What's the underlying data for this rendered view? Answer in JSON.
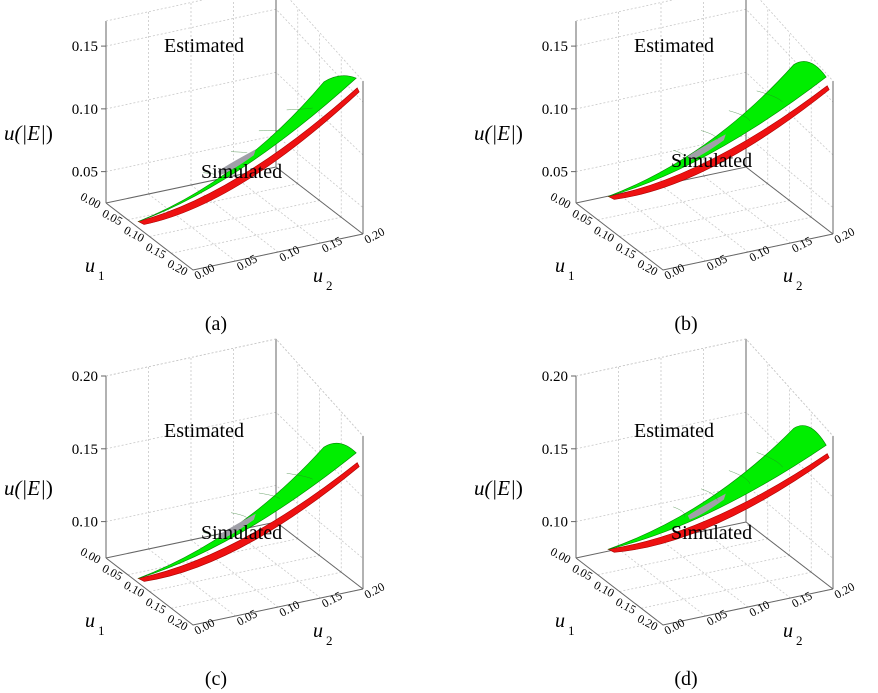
{
  "figure": {
    "colors": {
      "estimated": "#00ee00",
      "simulated": "#ee1111",
      "overlap": "#a0a0a8",
      "grid": "#c8c8c8",
      "box": "#666666"
    },
    "shared": {
      "x_axis": {
        "label": "u",
        "subscript": "2",
        "ticks": [
          "0.00",
          "0.05",
          "0.10",
          "0.15",
          "0.20"
        ]
      },
      "z_axis": {
        "label": "u",
        "subscript": "1",
        "ticks": [
          "0.00",
          "0.05",
          "0.10",
          "0.15",
          "0.20"
        ]
      },
      "y_axis": {
        "label_prefix": "u(",
        "label_var": "|E|",
        "label_suffix": ")"
      }
    }
  },
  "chart_data": [
    {
      "type": "surface3d",
      "caption": "(a)",
      "annotations": {
        "estimated": "Estimated",
        "simulated": "Simulated"
      },
      "y_ticks": [
        "0.05",
        "0.10",
        "0.15"
      ],
      "y_range": [
        0.025,
        0.17
      ],
      "x_range": [
        0.0,
        0.2
      ],
      "z_range": [
        0.0,
        0.2
      ],
      "series": [
        {
          "name": "Estimated",
          "start": 0.03,
          "end": 0.167,
          "far_end": 0.13
        },
        {
          "name": "Simulated",
          "start": 0.03,
          "end": 0.16
        }
      ]
    },
    {
      "type": "surface3d",
      "caption": "(b)",
      "annotations": {
        "estimated": "Estimated",
        "simulated": "Simulated"
      },
      "y_ticks": [
        "0.05",
        "0.10",
        "0.15"
      ],
      "y_range": [
        0.025,
        0.17
      ],
      "x_range": [
        0.0,
        0.2
      ],
      "z_range": [
        0.0,
        0.2
      ],
      "series": [
        {
          "name": "Estimated",
          "start": 0.05,
          "end": 0.168,
          "far_end": 0.145
        },
        {
          "name": "Simulated",
          "start": 0.05,
          "end": 0.162
        }
      ]
    },
    {
      "type": "surface3d",
      "caption": "(c)",
      "annotations": {
        "estimated": "Estimated",
        "simulated": "Simulated"
      },
      "y_ticks": [
        "0.10",
        "0.15",
        "0.20"
      ],
      "y_range": [
        0.075,
        0.2
      ],
      "x_range": [
        0.0,
        0.2
      ],
      "z_range": [
        0.0,
        0.2
      ],
      "series": [
        {
          "name": "Estimated",
          "start": 0.078,
          "end": 0.182,
          "far_end": 0.158
        },
        {
          "name": "Simulated",
          "start": 0.078,
          "end": 0.176
        }
      ]
    },
    {
      "type": "surface3d",
      "caption": "(d)",
      "annotations": {
        "estimated": "Estimated",
        "simulated": "Simulated"
      },
      "y_ticks": [
        "0.10",
        "0.15",
        "0.20"
      ],
      "y_range": [
        0.075,
        0.2
      ],
      "x_range": [
        0.0,
        0.2
      ],
      "z_range": [
        0.0,
        0.2
      ],
      "series": [
        {
          "name": "Estimated",
          "start": 0.098,
          "end": 0.188,
          "far_end": 0.172
        },
        {
          "name": "Simulated",
          "start": 0.098,
          "end": 0.183
        }
      ]
    }
  ]
}
